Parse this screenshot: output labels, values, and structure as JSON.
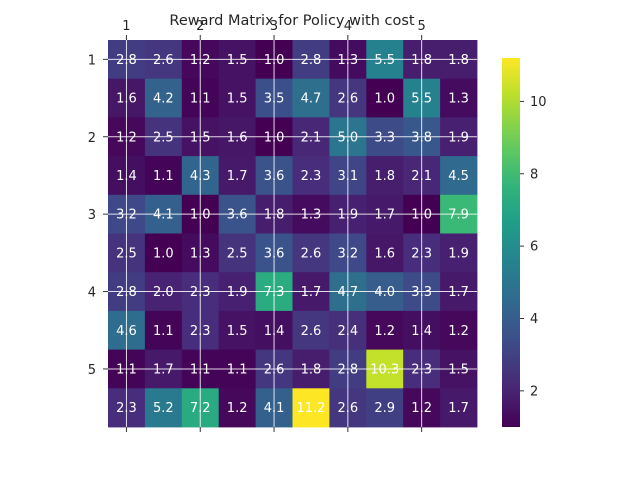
{
  "chart_data": {
    "type": "heatmap",
    "title": "Reward Matrix for Policy with cost",
    "colormap": "viridis",
    "grid": true,
    "x_tick_labels": [
      "1",
      "2",
      "3",
      "4",
      "5"
    ],
    "y_tick_labels": [
      "1",
      "2",
      "3",
      "4",
      "5"
    ],
    "colorbar_ticks": [
      "2",
      "4",
      "6",
      "8",
      "10"
    ],
    "color_range": [
      1.0,
      11.2
    ],
    "values": [
      [
        2.8,
        2.6,
        1.2,
        1.5,
        1.0,
        2.8,
        1.3,
        5.5,
        1.8,
        1.8
      ],
      [
        1.6,
        4.2,
        1.1,
        1.5,
        3.5,
        4.7,
        2.6,
        1.0,
        5.5,
        1.3
      ],
      [
        1.2,
        2.5,
        1.5,
        1.6,
        1.0,
        2.1,
        5.0,
        3.3,
        3.8,
        1.9
      ],
      [
        1.4,
        1.1,
        4.3,
        1.7,
        3.6,
        2.3,
        3.1,
        1.8,
        2.1,
        4.5
      ],
      [
        3.2,
        4.1,
        1.0,
        3.6,
        1.8,
        1.3,
        1.9,
        1.7,
        1.0,
        7.9
      ],
      [
        2.5,
        1.0,
        1.3,
        2.5,
        3.6,
        2.6,
        3.2,
        1.6,
        2.3,
        1.9
      ],
      [
        2.8,
        2.0,
        2.3,
        1.9,
        7.3,
        1.7,
        4.7,
        4.0,
        3.3,
        1.7
      ],
      [
        4.6,
        1.1,
        2.3,
        1.5,
        1.4,
        2.6,
        2.4,
        1.2,
        1.4,
        1.2
      ],
      [
        1.1,
        1.7,
        1.1,
        1.1,
        2.6,
        1.8,
        2.8,
        10.3,
        2.3,
        1.5
      ],
      [
        2.3,
        5.2,
        7.2,
        1.2,
        4.1,
        11.2,
        2.6,
        2.9,
        1.2,
        1.7
      ]
    ]
  }
}
